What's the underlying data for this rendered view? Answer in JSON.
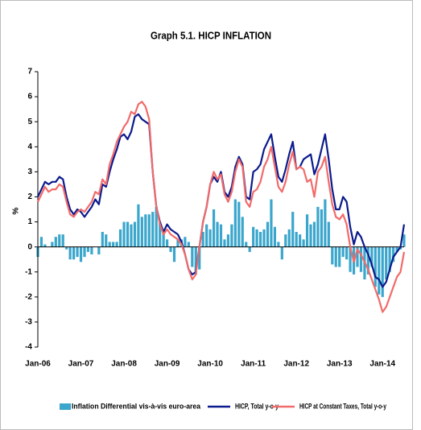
{
  "chart_data": {
    "type": "combo",
    "title": "Graph 5.1. HICP INFLATION",
    "y_label": "%",
    "ylim": [
      -4,
      7
    ],
    "yticks": [
      -4,
      -3,
      -2,
      -1,
      0,
      1,
      2,
      3,
      4,
      5,
      6,
      7
    ],
    "categories": [
      "Jan-06",
      null,
      null,
      null,
      null,
      null,
      null,
      null,
      null,
      null,
      null,
      null,
      "Jan-07",
      null,
      null,
      null,
      null,
      null,
      null,
      null,
      null,
      null,
      null,
      null,
      "Jan-08",
      null,
      null,
      null,
      null,
      null,
      null,
      null,
      null,
      null,
      null,
      null,
      "Jan-09",
      null,
      null,
      null,
      null,
      null,
      null,
      null,
      null,
      null,
      null,
      null,
      "Jan-10",
      null,
      null,
      null,
      null,
      null,
      null,
      null,
      null,
      null,
      null,
      null,
      "Jan-11",
      null,
      null,
      null,
      null,
      null,
      null,
      null,
      null,
      null,
      null,
      null,
      "Jan-12",
      null,
      null,
      null,
      null,
      null,
      null,
      null,
      null,
      null,
      null,
      null,
      "Jan-13",
      null,
      null,
      null,
      null,
      null,
      null,
      null,
      null,
      null,
      null,
      null,
      "Jan-14",
      null,
      null,
      null,
      null,
      null,
      null
    ],
    "series": [
      {
        "name": "Inflation Differential vis-à-vis euro-area",
        "type": "bar",
        "color": "#3aa6cc",
        "values": [
          -0.4,
          0.4,
          0.1,
          0.0,
          0.2,
          0.4,
          0.5,
          0.5,
          -0.1,
          -0.5,
          -0.5,
          -0.4,
          -0.6,
          -0.4,
          -0.2,
          -0.3,
          0.0,
          -0.3,
          0.6,
          0.5,
          0.2,
          0.2,
          0.2,
          0.7,
          1.0,
          1.0,
          0.9,
          1.0,
          1.7,
          1.2,
          1.3,
          1.3,
          1.4,
          1.6,
          1.0,
          0.6,
          0.3,
          -0.2,
          -0.6,
          0.3,
          0.3,
          0.4,
          0.2,
          -0.8,
          -1.1,
          -0.9,
          0.6,
          0.9,
          0.7,
          1.5,
          1.0,
          0.9,
          0.3,
          0.5,
          0.9,
          1.9,
          1.8,
          1.2,
          0.2,
          -0.2,
          0.8,
          0.7,
          0.6,
          0.7,
          1.0,
          1.9,
          0.8,
          0.2,
          -0.5,
          0.5,
          0.7,
          1.4,
          0.6,
          0.5,
          0.3,
          1.3,
          0.9,
          1.0,
          1.6,
          1.5,
          1.9,
          1.0,
          -0.7,
          -0.8,
          -0.8,
          -0.4,
          -0.5,
          -1.0,
          -1.1,
          -0.8,
          -1.0,
          -1.3,
          -1.1,
          -0.8,
          -1.6,
          -1.9,
          -2.0,
          -1.3,
          -1.0,
          -0.6,
          -0.2,
          -0.1,
          0.5
        ]
      },
      {
        "name": "HICP, Total y-o-y",
        "type": "line",
        "color": "#0b1a8c",
        "values": [
          2.0,
          2.3,
          2.6,
          2.5,
          2.6,
          2.6,
          2.8,
          2.7,
          2.0,
          1.5,
          1.3,
          1.5,
          1.4,
          1.2,
          1.4,
          1.6,
          1.9,
          1.7,
          2.5,
          2.4,
          3.0,
          3.5,
          3.9,
          4.4,
          4.5,
          4.3,
          4.6,
          5.2,
          5.3,
          5.1,
          5.0,
          4.9,
          3.0,
          1.6,
          1.0,
          0.6,
          0.9,
          0.7,
          0.6,
          0.5,
          0.2,
          -0.3,
          -0.9,
          -1.1,
          -1.0,
          0.0,
          1.0,
          1.6,
          2.5,
          2.8,
          2.6,
          3.0,
          2.2,
          2.0,
          2.4,
          3.2,
          3.6,
          3.3,
          2.0,
          1.9,
          3.0,
          3.1,
          3.3,
          3.9,
          4.2,
          4.5,
          3.6,
          2.8,
          2.6,
          3.1,
          3.7,
          4.2,
          3.1,
          3.2,
          3.5,
          3.6,
          3.7,
          2.9,
          3.3,
          3.9,
          4.5,
          3.5,
          2.3,
          1.5,
          1.5,
          2.0,
          1.8,
          0.8,
          0.1,
          0.6,
          0.4,
          0.0,
          -0.3,
          -0.7,
          -1.2,
          -1.3,
          -1.6,
          -1.4,
          -0.9,
          -0.4,
          -0.2,
          0.0,
          0.9
        ]
      },
      {
        "name": "HICP at Constant Taxes, Total y-o-y",
        "type": "line",
        "color": "#f26a6a",
        "values": [
          1.8,
          2.1,
          2.4,
          2.2,
          2.3,
          2.3,
          2.5,
          2.4,
          1.8,
          1.3,
          1.2,
          1.4,
          1.5,
          1.4,
          1.6,
          1.8,
          2.2,
          2.1,
          2.7,
          2.5,
          3.3,
          3.7,
          4.2,
          4.5,
          4.8,
          5.0,
          5.4,
          5.3,
          5.7,
          5.8,
          5.6,
          5.1,
          3.0,
          1.6,
          0.9,
          0.5,
          0.7,
          0.5,
          0.4,
          0.3,
          0.1,
          -0.3,
          -0.9,
          -1.3,
          -1.1,
          0.0,
          1.0,
          1.6,
          2.5,
          3.0,
          2.7,
          2.9,
          2.1,
          1.8,
          2.2,
          3.0,
          3.5,
          3.2,
          1.8,
          1.6,
          2.2,
          2.3,
          2.6,
          3.2,
          3.5,
          4.0,
          3.2,
          2.4,
          2.2,
          2.6,
          3.3,
          3.8,
          3.1,
          3.2,
          3.1,
          2.6,
          2.7,
          2.0,
          3.0,
          3.2,
          3.6,
          2.6,
          1.7,
          1.2,
          1.1,
          1.3,
          0.9,
          0.0,
          -0.6,
          -0.1,
          -0.3,
          -0.6,
          -0.9,
          -1.3,
          -1.7,
          -2.1,
          -2.6,
          -2.4,
          -2.0,
          -1.6,
          -1.2,
          -1.0,
          -0.2
        ]
      }
    ]
  }
}
